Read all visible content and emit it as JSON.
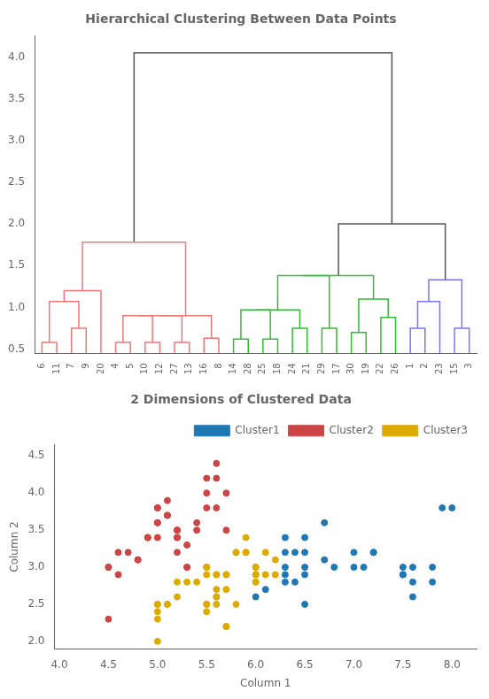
{
  "chart_data": [
    {
      "type": "dendrogram",
      "title": "Hierarchical Clustering Between Data Points",
      "categories": [
        "6",
        "11",
        "7",
        "9",
        "20",
        "4",
        "5",
        "10",
        "12",
        "27",
        "13",
        "16",
        "8",
        "14",
        "28",
        "25",
        "18",
        "24",
        "21",
        "29",
        "17",
        "30",
        "19",
        "22",
        "26",
        "1",
        "2",
        "23",
        "15",
        "3"
      ],
      "ylim": [
        0.45,
        4.25
      ],
      "yticks": [
        0.5,
        {
          "value": 1.0,
          "label": "1.0"
        },
        1.5,
        {
          "value": 2.0,
          "label": "2.0"
        },
        2.5,
        {
          "value": 3.0,
          "label": "3.0"
        },
        3.5,
        {
          "value": 4.0,
          "label": "4.0"
        }
      ],
      "grid": false,
      "tree": {
        "height": 4.05,
        "color": "#555555",
        "children": [
          {
            "height": 1.78,
            "color": "#EE7777",
            "children": [
              {
                "height": 1.2,
                "color": "#EE7777",
                "children": [
                  {
                    "height": 1.07,
                    "color": "#EE7777",
                    "children": [
                      {
                        "height": 0.58,
                        "color": "#EE7777",
                        "children": [
                          "6",
                          "11"
                        ]
                      },
                      {
                        "height": 0.75,
                        "color": "#EE7777",
                        "children": [
                          "7",
                          "9"
                        ]
                      }
                    ]
                  },
                  "20"
                ]
              },
              {
                "height": 0.9,
                "color": "#EE7777",
                "children": [
                  {
                    "height": 0.9,
                    "color": "#EE7777",
                    "children": [
                      {
                        "height": 0.9,
                        "color": "#EE7777",
                        "children": [
                          {
                            "height": 0.58,
                            "color": "#EE7777",
                            "children": [
                              "4",
                              "5"
                            ]
                          },
                          {
                            "height": 0.58,
                            "color": "#EE7777",
                            "children": [
                              "10",
                              "12"
                            ]
                          }
                        ]
                      },
                      {
                        "height": 0.58,
                        "color": "#EE7777",
                        "children": [
                          "27",
                          "13"
                        ]
                      }
                    ]
                  },
                  {
                    "height": 0.63,
                    "color": "#EE7777",
                    "children": [
                      "16",
                      "8"
                    ]
                  }
                ]
              }
            ]
          },
          {
            "height": 2.0,
            "color": "#555555",
            "children": [
              {
                "height": 1.38,
                "color": "#33BB33",
                "children": [
                  {
                    "height": 1.38,
                    "color": "#33BB33",
                    "children": [
                      {
                        "height": 0.97,
                        "color": "#33BB33",
                        "children": [
                          {
                            "height": 0.97,
                            "color": "#33BB33",
                            "children": [
                              {
                                "height": 0.62,
                                "color": "#33BB33",
                                "children": [
                                  "14",
                                  "28"
                                ]
                              },
                              {
                                "height": 0.62,
                                "color": "#33BB33",
                                "children": [
                                  "25",
                                  "18"
                                ]
                              }
                            ]
                          },
                          {
                            "height": 0.75,
                            "color": "#33BB33",
                            "children": [
                              "24",
                              "21"
                            ]
                          }
                        ]
                      },
                      {
                        "height": 0.75,
                        "color": "#33BB33",
                        "children": [
                          "29",
                          "17"
                        ]
                      }
                    ]
                  },
                  {
                    "height": 1.1,
                    "color": "#33BB33",
                    "children": [
                      {
                        "height": 0.7,
                        "color": "#33BB33",
                        "children": [
                          "30",
                          "19"
                        ]
                      },
                      {
                        "height": 0.88,
                        "color": "#33BB33",
                        "children": [
                          "22",
                          "26"
                        ]
                      }
                    ]
                  }
                ]
              },
              {
                "height": 1.33,
                "color": "#7777EE",
                "children": [
                  {
                    "height": 1.07,
                    "color": "#7777EE",
                    "children": [
                      {
                        "height": 0.75,
                        "color": "#7777EE",
                        "children": [
                          "1",
                          "2"
                        ]
                      },
                      "23"
                    ]
                  },
                  {
                    "height": 0.75,
                    "color": "#7777EE",
                    "children": [
                      "15",
                      "3"
                    ]
                  }
                ]
              }
            ]
          }
        ]
      }
    },
    {
      "type": "scatter",
      "title": "2 Dimensions of Clustered Data",
      "x_label": "Column 1",
      "y_label": "Column 2",
      "xlim": [
        3.95,
        8.25
      ],
      "xticks": [
        {
          "value": 4.0,
          "label": "4.0"
        },
        4.5,
        {
          "value": 5.0,
          "label": "5.0"
        },
        5.5,
        {
          "value": 6.0,
          "label": "6.0"
        },
        6.5,
        {
          "value": 7.0,
          "label": "7.0"
        },
        7.5,
        {
          "value": 8.0,
          "label": "8.0"
        }
      ],
      "ylim": [
        1.9,
        4.65
      ],
      "yticks": [
        {
          "value": 2.0,
          "label": "2.0"
        },
        2.5,
        {
          "value": 3.0,
          "label": "3.0"
        },
        3.5,
        {
          "value": 4.0,
          "label": "4.0"
        },
        4.5
      ],
      "grid": false,
      "legend": "upper right",
      "series": [
        {
          "name": "Cluster1",
          "color": "#1f77b4",
          "values": [
            [
              6.7,
              3.1
            ],
            [
              6.4,
              3.2
            ],
            [
              6.3,
              3.2
            ],
            [
              6.5,
              3.2
            ],
            [
              7.2,
              3.2
            ],
            [
              7.0,
              3.0
            ],
            [
              7.1,
              3.0
            ],
            [
              6.3,
              3.0
            ],
            [
              6.5,
              3.0
            ],
            [
              7.5,
              3.0
            ],
            [
              6.8,
              3.0
            ],
            [
              7.2,
              3.2
            ],
            [
              7.6,
              3.0
            ],
            [
              7.8,
              3.0
            ],
            [
              7.9,
              3.8
            ],
            [
              8.0,
              3.8
            ],
            [
              6.7,
              3.6
            ],
            [
              7.0,
              3.2
            ],
            [
              6.5,
              3.4
            ],
            [
              6.3,
              3.4
            ],
            [
              7.6,
              2.8
            ],
            [
              7.8,
              2.8
            ],
            [
              7.5,
              2.9
            ],
            [
              7.6,
              2.6
            ],
            [
              6.5,
              2.5
            ],
            [
              6.0,
              2.6
            ],
            [
              6.1,
              2.7
            ],
            [
              6.3,
              2.8
            ],
            [
              6.3,
              2.9
            ],
            [
              6.4,
              2.8
            ],
            [
              6.5,
              2.9
            ],
            [
              7.5,
              2.9
            ]
          ]
        },
        {
          "name": "Cluster2",
          "color": "#CC4444",
          "values": [
            [
              4.5,
              3.0
            ],
            [
              4.5,
              3.0
            ],
            [
              4.6,
              2.9
            ],
            [
              4.5,
              2.3
            ],
            [
              4.6,
              3.2
            ],
            [
              4.7,
              3.2
            ],
            [
              4.8,
              3.1
            ],
            [
              4.8,
              3.1
            ],
            [
              4.9,
              3.4
            ],
            [
              4.9,
              3.4
            ],
            [
              5.0,
              3.4
            ],
            [
              5.0,
              3.6
            ],
            [
              5.0,
              3.6
            ],
            [
              5.0,
              3.8
            ],
            [
              5.1,
              3.9
            ],
            [
              5.1,
              3.7
            ],
            [
              5.1,
              3.7
            ],
            [
              5.2,
              3.5
            ],
            [
              5.2,
              3.5
            ],
            [
              5.2,
              3.4
            ],
            [
              5.2,
              3.4
            ],
            [
              5.2,
              3.2
            ],
            [
              5.3,
              3.3
            ],
            [
              5.3,
              3.0
            ],
            [
              5.3,
              3.0
            ],
            [
              5.4,
              3.6
            ],
            [
              5.4,
              3.5
            ],
            [
              5.5,
              3.8
            ],
            [
              5.5,
              4.2
            ],
            [
              5.5,
              4.0
            ],
            [
              5.6,
              4.4
            ],
            [
              5.6,
              4.2
            ],
            [
              5.6,
              3.8
            ],
            [
              5.7,
              4.0
            ],
            [
              5.7,
              3.5
            ],
            [
              5.0,
              3.8
            ]
          ]
        },
        {
          "name": "Cluster3",
          "color": "#DDAA00",
          "values": [
            [
              5.0,
              2.0
            ],
            [
              5.0,
              2.4
            ],
            [
              5.0,
              2.5
            ],
            [
              5.0,
              2.5
            ],
            [
              5.0,
              2.3
            ],
            [
              5.1,
              2.5
            ],
            [
              5.1,
              2.5
            ],
            [
              5.2,
              2.6
            ],
            [
              5.2,
              2.8
            ],
            [
              5.3,
              2.8
            ],
            [
              5.4,
              2.8
            ],
            [
              5.5,
              2.5
            ],
            [
              5.5,
              2.5
            ],
            [
              5.5,
              3.0
            ],
            [
              5.5,
              3.0
            ],
            [
              5.5,
              3.0
            ],
            [
              5.6,
              2.6
            ],
            [
              5.6,
              2.6
            ],
            [
              5.6,
              2.7
            ],
            [
              5.6,
              2.9
            ],
            [
              5.6,
              2.9
            ],
            [
              5.7,
              2.9
            ],
            [
              5.7,
              2.9
            ],
            [
              5.7,
              2.7
            ],
            [
              5.8,
              3.2
            ],
            [
              5.9,
              3.4
            ],
            [
              5.9,
              3.2
            ],
            [
              6.0,
              3.0
            ],
            [
              6.0,
              3.0
            ],
            [
              6.0,
              2.9
            ],
            [
              6.0,
              2.9
            ],
            [
              6.0,
              2.8
            ],
            [
              6.0,
              2.8
            ],
            [
              6.0,
              2.9
            ],
            [
              6.1,
              3.2
            ],
            [
              6.1,
              2.9
            ],
            [
              6.2,
              3.1
            ],
            [
              6.2,
              2.9
            ],
            [
              5.8,
              3.2
            ],
            [
              5.9,
              3.2
            ],
            [
              5.5,
              2.4
            ],
            [
              5.6,
              2.5
            ],
            [
              5.7,
              2.2
            ],
            [
              5.7,
              2.2
            ],
            [
              5.8,
              2.5
            ],
            [
              5.5,
              2.9
            ]
          ]
        }
      ]
    }
  ]
}
